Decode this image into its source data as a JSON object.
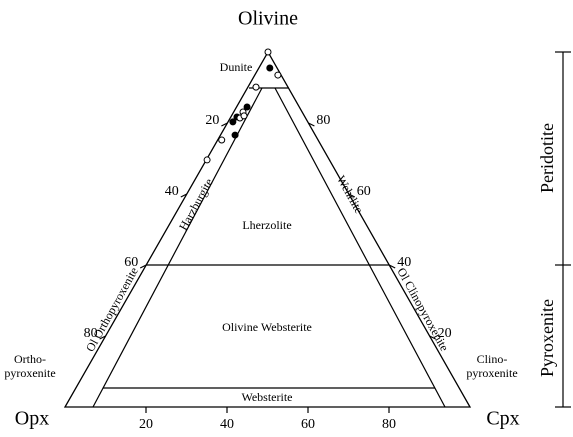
{
  "chart_data": {
    "type": "ternary",
    "title": "Olivine",
    "corners": [
      "Opx",
      "Cpx"
    ],
    "ticks": [
      20,
      40,
      60,
      80
    ],
    "fields": {
      "dunite": "Dunite",
      "harzburgite": "Harzburgite",
      "lherzolite": "Lherzolite",
      "wehrlite": "Wehrlite",
      "ol_websterite": "Olivine Websterite",
      "ol_opx": "Ol Orthopyroxenite",
      "ol_cpx": "Ol Clinopyroxenite",
      "websterite": "Websterite",
      "orthopyroxenite": [
        "Ortho-",
        "pyroxenite"
      ],
      "clinopyroxenite": [
        "Clino-",
        "pyroxenite"
      ]
    },
    "groups": [
      "Peridotite",
      "Pyroxenite"
    ],
    "series": [
      {
        "name": "filled",
        "filled": true,
        "ol": [
          95.5,
          84.5,
          81.7,
          80.3,
          76.6
        ],
        "cpx": [
          2.7,
          2.6,
          1.5,
          1.2,
          3.6
        ]
      },
      {
        "name": "open",
        "filled": false,
        "ol": [
          100,
          93.5,
          90.1,
          83.1,
          81.4,
          82,
          75.2,
          69.6
        ],
        "cpx": [
          0,
          5.7,
          2,
          2.3,
          2.4,
          3.1,
          1,
          0.2
        ]
      }
    ]
  }
}
